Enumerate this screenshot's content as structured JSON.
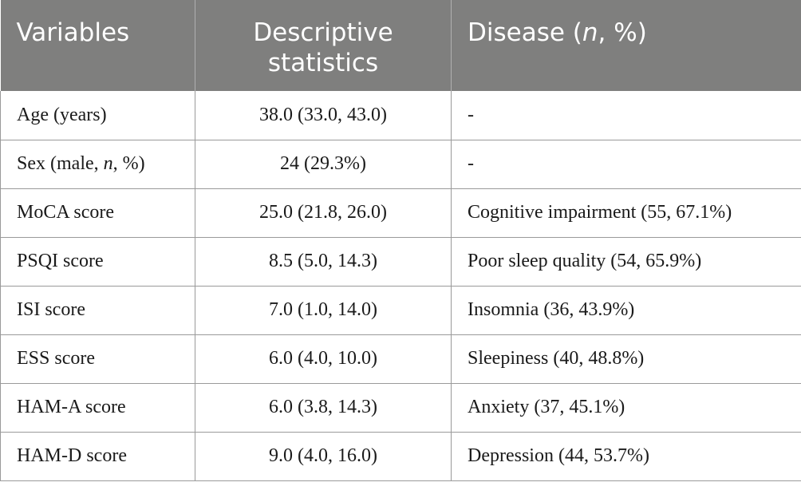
{
  "table": {
    "headers": {
      "variables": "Variables",
      "descriptive_line1": "Descriptive",
      "descriptive_line2": "statistics",
      "disease_prefix": "Disease (",
      "disease_n": "n",
      "disease_suffix": ", %)"
    },
    "rows": [
      {
        "variable": "Age (years)",
        "variable_pre": "Age (years)",
        "variable_n": "",
        "variable_post": "",
        "descriptive": "38.0 (33.0, 43.0)",
        "disease": "-"
      },
      {
        "variable": "Sex (male, n, %)",
        "variable_pre": "Sex (male, ",
        "variable_n": "n",
        "variable_post": ", %)",
        "descriptive": "24 (29.3%)",
        "disease": "-"
      },
      {
        "variable": "MoCA score",
        "variable_pre": "MoCA score",
        "variable_n": "",
        "variable_post": "",
        "descriptive": "25.0 (21.8, 26.0)",
        "disease": "Cognitive impairment (55, 67.1%)"
      },
      {
        "variable": "PSQI score",
        "variable_pre": "PSQI score",
        "variable_n": "",
        "variable_post": "",
        "descriptive": "8.5 (5.0, 14.3)",
        "disease": "Poor sleep quality (54, 65.9%)"
      },
      {
        "variable": "ISI score",
        "variable_pre": "ISI score",
        "variable_n": "",
        "variable_post": "",
        "descriptive": "7.0 (1.0, 14.0)",
        "disease": "Insomnia (36, 43.9%)"
      },
      {
        "variable": "ESS score",
        "variable_pre": "ESS score",
        "variable_n": "",
        "variable_post": "",
        "descriptive": "6.0 (4.0, 10.0)",
        "disease": "Sleepiness (40, 48.8%)"
      },
      {
        "variable": "HAM-A score",
        "variable_pre": "HAM-A score",
        "variable_n": "",
        "variable_post": "",
        "descriptive": "6.0 (3.8, 14.3)",
        "disease": "Anxiety (37, 45.1%)"
      },
      {
        "variable": "HAM-D score",
        "variable_pre": "HAM-D score",
        "variable_n": "",
        "variable_post": "",
        "descriptive": "9.0 (4.0, 16.0)",
        "disease": "Depression (44, 53.7%)"
      }
    ]
  }
}
